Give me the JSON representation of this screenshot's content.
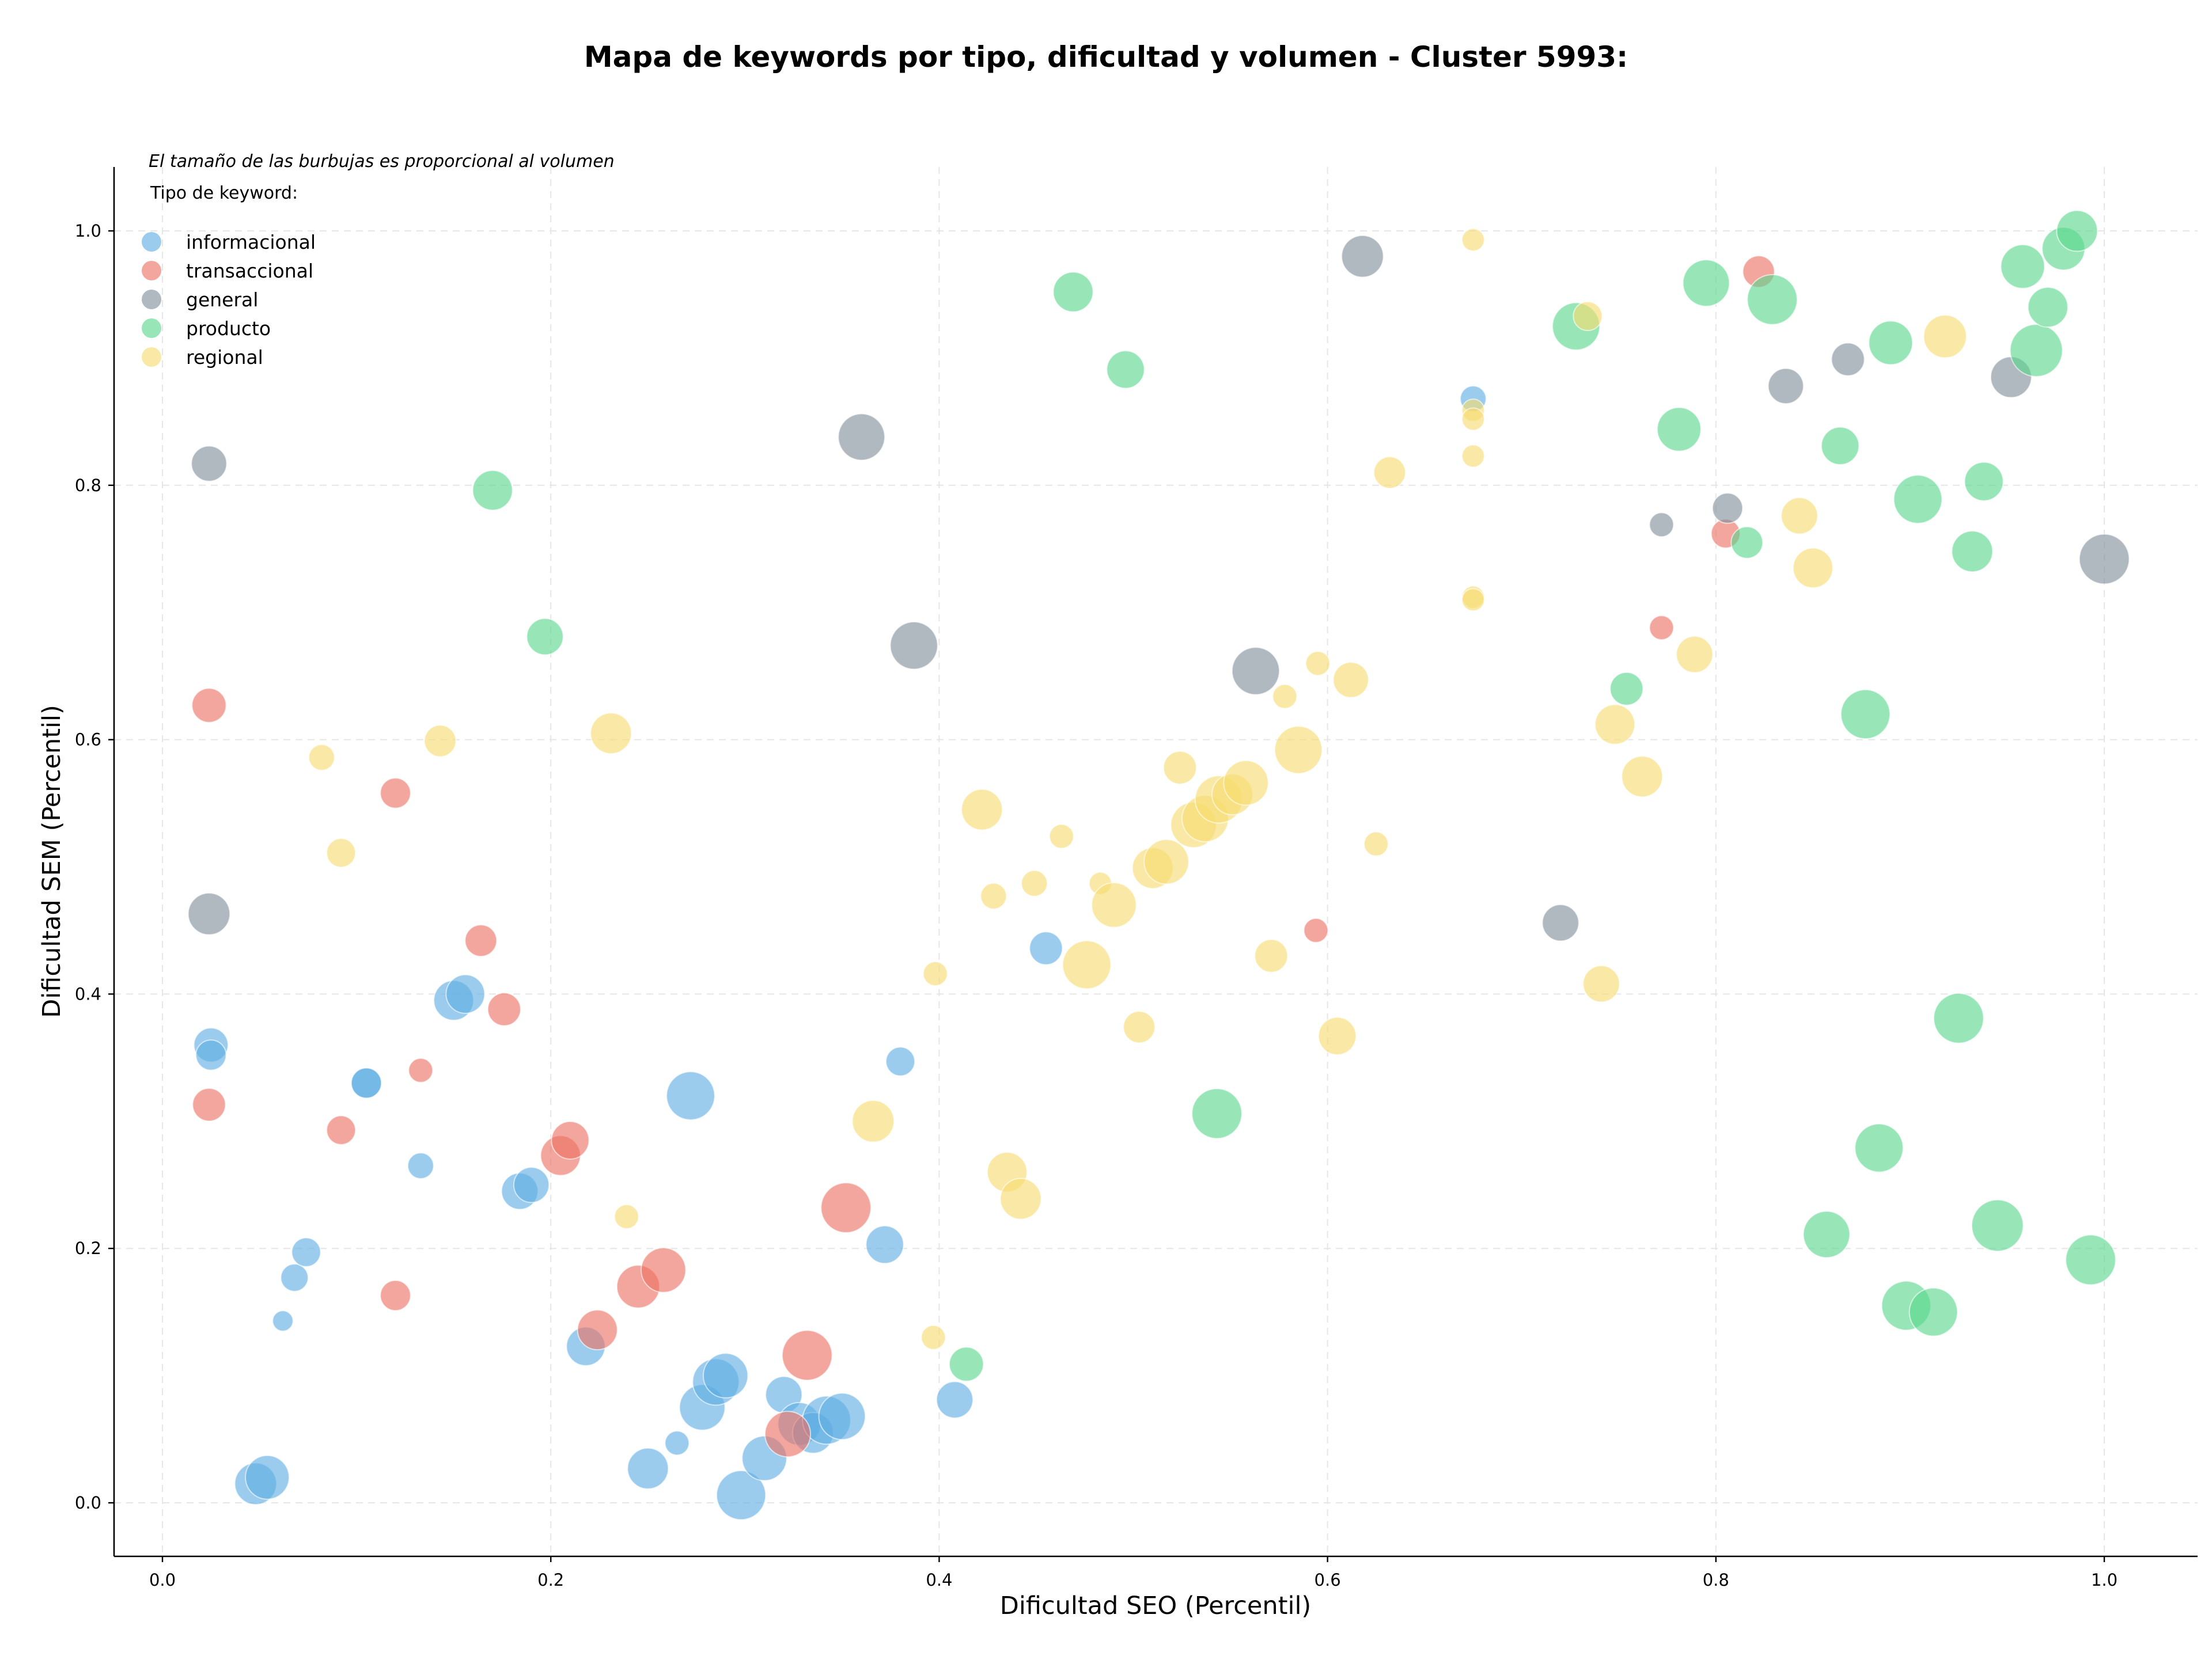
{
  "chart_data": {
    "type": "scatter",
    "title": "Mapa de keywords por tipo, dificultad y volumen - Cluster 5993:",
    "subtitle": "El tamaño de las burbujas es proporcional al volumen",
    "xlabel": "Dificultad SEO (Percentil)",
    "ylabel": "Dificultad SEM (Percentil)",
    "xlim": [
      -0.04,
      1.05
    ],
    "ylim": [
      -0.04,
      1.05
    ],
    "xticks": [
      "0.0",
      "0.2",
      "0.4",
      "0.6",
      "0.8",
      "1.0"
    ],
    "yticks": [
      "0.0",
      "0.2",
      "0.4",
      "0.6",
      "0.8",
      "1.0"
    ],
    "grid": true,
    "legend_title": "Tipo de keyword:",
    "legend_position": "top-left",
    "series": [
      {
        "name": "informacional",
        "color": "#5dade2",
        "points": [
          [
            0.025,
            0.36,
            1.4
          ],
          [
            0.025,
            0.352,
            1.1
          ],
          [
            0.105,
            0.33,
            1.1
          ],
          [
            0.105,
            0.33,
            1.1
          ],
          [
            0.133,
            0.265,
            0.8
          ],
          [
            0.062,
            0.143,
            0.5
          ],
          [
            0.068,
            0.177,
            0.9
          ],
          [
            0.074,
            0.197,
            1.0
          ],
          [
            0.048,
            0.015,
            2.1
          ],
          [
            0.054,
            0.02,
            2.3
          ],
          [
            0.15,
            0.395,
            1.9
          ],
          [
            0.156,
            0.4,
            1.8
          ],
          [
            0.184,
            0.245,
            1.6
          ],
          [
            0.19,
            0.25,
            1.5
          ],
          [
            0.218,
            0.123,
            1.8
          ],
          [
            0.25,
            0.027,
            2.0
          ],
          [
            0.265,
            0.047,
            0.7
          ],
          [
            0.272,
            0.32,
            2.8
          ],
          [
            0.278,
            0.075,
            2.5
          ],
          [
            0.285,
            0.095,
            2.6
          ],
          [
            0.29,
            0.1,
            2.4
          ],
          [
            0.298,
            0.006,
            2.9
          ],
          [
            0.31,
            0.035,
            2.4
          ],
          [
            0.32,
            0.085,
            1.6
          ],
          [
            0.328,
            0.062,
            2.2
          ],
          [
            0.335,
            0.055,
            2.0
          ],
          [
            0.342,
            0.065,
            2.8
          ],
          [
            0.35,
            0.068,
            2.6
          ],
          [
            0.372,
            0.203,
            1.7
          ],
          [
            0.38,
            0.347,
            1.0
          ],
          [
            0.408,
            0.081,
            1.6
          ],
          [
            0.455,
            0.436,
            1.3
          ],
          [
            0.675,
            0.868,
            0.8
          ]
        ]
      },
      {
        "name": "transaccional",
        "color": "#ec7063",
        "points": [
          [
            0.024,
            0.627,
            1.4
          ],
          [
            0.024,
            0.313,
            1.3
          ],
          [
            0.092,
            0.293,
            1.0
          ],
          [
            0.12,
            0.558,
            1.1
          ],
          [
            0.12,
            0.163,
            1.1
          ],
          [
            0.133,
            0.34,
            0.7
          ],
          [
            0.164,
            0.442,
            1.2
          ],
          [
            0.176,
            0.388,
            1.3
          ],
          [
            0.205,
            0.273,
            1.9
          ],
          [
            0.21,
            0.285,
            1.7
          ],
          [
            0.224,
            0.136,
            1.9
          ],
          [
            0.245,
            0.17,
            2.2
          ],
          [
            0.258,
            0.183,
            2.4
          ],
          [
            0.322,
            0.054,
            2.5
          ],
          [
            0.332,
            0.116,
            3.0
          ],
          [
            0.352,
            0.232,
            3.0
          ],
          [
            0.594,
            0.45,
            0.7
          ],
          [
            0.772,
            0.688,
            0.7
          ],
          [
            0.805,
            0.762,
            1.0
          ],
          [
            0.822,
            0.968,
            1.2
          ]
        ]
      },
      {
        "name": "general",
        "color": "#7f8c9a",
        "points": [
          [
            0.024,
            0.817,
            1.5
          ],
          [
            0.024,
            0.463,
            2.1
          ],
          [
            0.36,
            0.838,
            2.6
          ],
          [
            0.387,
            0.674,
            2.7
          ],
          [
            0.563,
            0.654,
            2.7
          ],
          [
            0.618,
            0.98,
            2.1
          ],
          [
            0.72,
            0.456,
            1.6
          ],
          [
            0.772,
            0.769,
            0.7
          ],
          [
            0.806,
            0.782,
            1.1
          ],
          [
            0.836,
            0.878,
            1.5
          ],
          [
            0.868,
            0.899,
            1.3
          ],
          [
            0.952,
            0.885,
            2.0
          ],
          [
            1.0,
            0.742,
            3.0
          ]
        ]
      },
      {
        "name": "producto",
        "color": "#58d68d",
        "points": [
          [
            0.17,
            0.796,
            1.9
          ],
          [
            0.197,
            0.681,
            1.6
          ],
          [
            0.469,
            0.952,
            1.9
          ],
          [
            0.496,
            0.891,
            1.7
          ],
          [
            0.543,
            0.306,
            3.0
          ],
          [
            0.414,
            0.109,
            1.4
          ],
          [
            0.728,
            0.925,
            2.7
          ],
          [
            0.754,
            0.64,
            1.3
          ],
          [
            0.781,
            0.844,
            2.3
          ],
          [
            0.795,
            0.959,
            2.6
          ],
          [
            0.816,
            0.755,
            1.2
          ],
          [
            0.829,
            0.946,
            3.0
          ],
          [
            0.857,
            0.211,
            2.6
          ],
          [
            0.864,
            0.831,
            1.7
          ],
          [
            0.877,
            0.62,
            2.9
          ],
          [
            0.884,
            0.279,
            2.8
          ],
          [
            0.89,
            0.912,
            2.3
          ],
          [
            0.898,
            0.155,
            2.9
          ],
          [
            0.904,
            0.789,
            2.8
          ],
          [
            0.912,
            0.15,
            2.8
          ],
          [
            0.925,
            0.381,
            3.0
          ],
          [
            0.932,
            0.748,
            2.0
          ],
          [
            0.938,
            0.803,
            1.8
          ],
          [
            0.945,
            0.218,
            3.2
          ],
          [
            0.958,
            0.972,
            2.3
          ],
          [
            0.965,
            0.906,
            3.3
          ],
          [
            0.971,
            0.94,
            1.9
          ],
          [
            0.979,
            0.986,
            2.2
          ],
          [
            0.986,
            1.0,
            2.0
          ],
          [
            0.993,
            0.191,
            3.0
          ]
        ]
      },
      {
        "name": "regional",
        "color": "#f7dc6f",
        "points": [
          [
            0.082,
            0.586,
            0.8
          ],
          [
            0.092,
            0.511,
            1.0
          ],
          [
            0.143,
            0.599,
            1.2
          ],
          [
            0.231,
            0.605,
            2.0
          ],
          [
            0.239,
            0.225,
            0.7
          ],
          [
            0.366,
            0.3,
            2.1
          ],
          [
            0.397,
            0.13,
            0.7
          ],
          [
            0.398,
            0.416,
            0.7
          ],
          [
            0.422,
            0.545,
            2.0
          ],
          [
            0.428,
            0.477,
            0.8
          ],
          [
            0.435,
            0.26,
            1.9
          ],
          [
            0.442,
            0.239,
            2.0
          ],
          [
            0.449,
            0.487,
            0.8
          ],
          [
            0.463,
            0.524,
            0.7
          ],
          [
            0.476,
            0.423,
            2.8
          ],
          [
            0.483,
            0.487,
            0.6
          ],
          [
            0.49,
            0.47,
            2.4
          ],
          [
            0.503,
            0.374,
            1.2
          ],
          [
            0.51,
            0.499,
            2.0
          ],
          [
            0.517,
            0.504,
            2.4
          ],
          [
            0.524,
            0.578,
            1.3
          ],
          [
            0.531,
            0.533,
            2.5
          ],
          [
            0.537,
            0.538,
            2.6
          ],
          [
            0.544,
            0.553,
            2.7
          ],
          [
            0.551,
            0.557,
            2.0
          ],
          [
            0.558,
            0.566,
            2.4
          ],
          [
            0.571,
            0.43,
            1.3
          ],
          [
            0.578,
            0.634,
            0.7
          ],
          [
            0.585,
            0.592,
            2.7
          ],
          [
            0.595,
            0.66,
            0.7
          ],
          [
            0.605,
            0.367,
            1.7
          ],
          [
            0.612,
            0.647,
            1.5
          ],
          [
            0.625,
            0.518,
            0.7
          ],
          [
            0.632,
            0.81,
            1.2
          ],
          [
            0.675,
            0.993,
            0.6
          ],
          [
            0.675,
            0.859,
            0.6
          ],
          [
            0.675,
            0.852,
            0.6
          ],
          [
            0.675,
            0.823,
            0.6
          ],
          [
            0.675,
            0.712,
            0.6
          ],
          [
            0.675,
            0.71,
            0.6
          ],
          [
            0.734,
            0.933,
            1.0
          ],
          [
            0.741,
            0.408,
            1.6
          ],
          [
            0.748,
            0.612,
            1.9
          ],
          [
            0.762,
            0.571,
            2.0
          ],
          [
            0.789,
            0.667,
            1.6
          ],
          [
            0.843,
            0.776,
            1.6
          ],
          [
            0.85,
            0.735,
            1.9
          ],
          [
            0.918,
            0.917,
            2.2
          ]
        ]
      }
    ]
  }
}
